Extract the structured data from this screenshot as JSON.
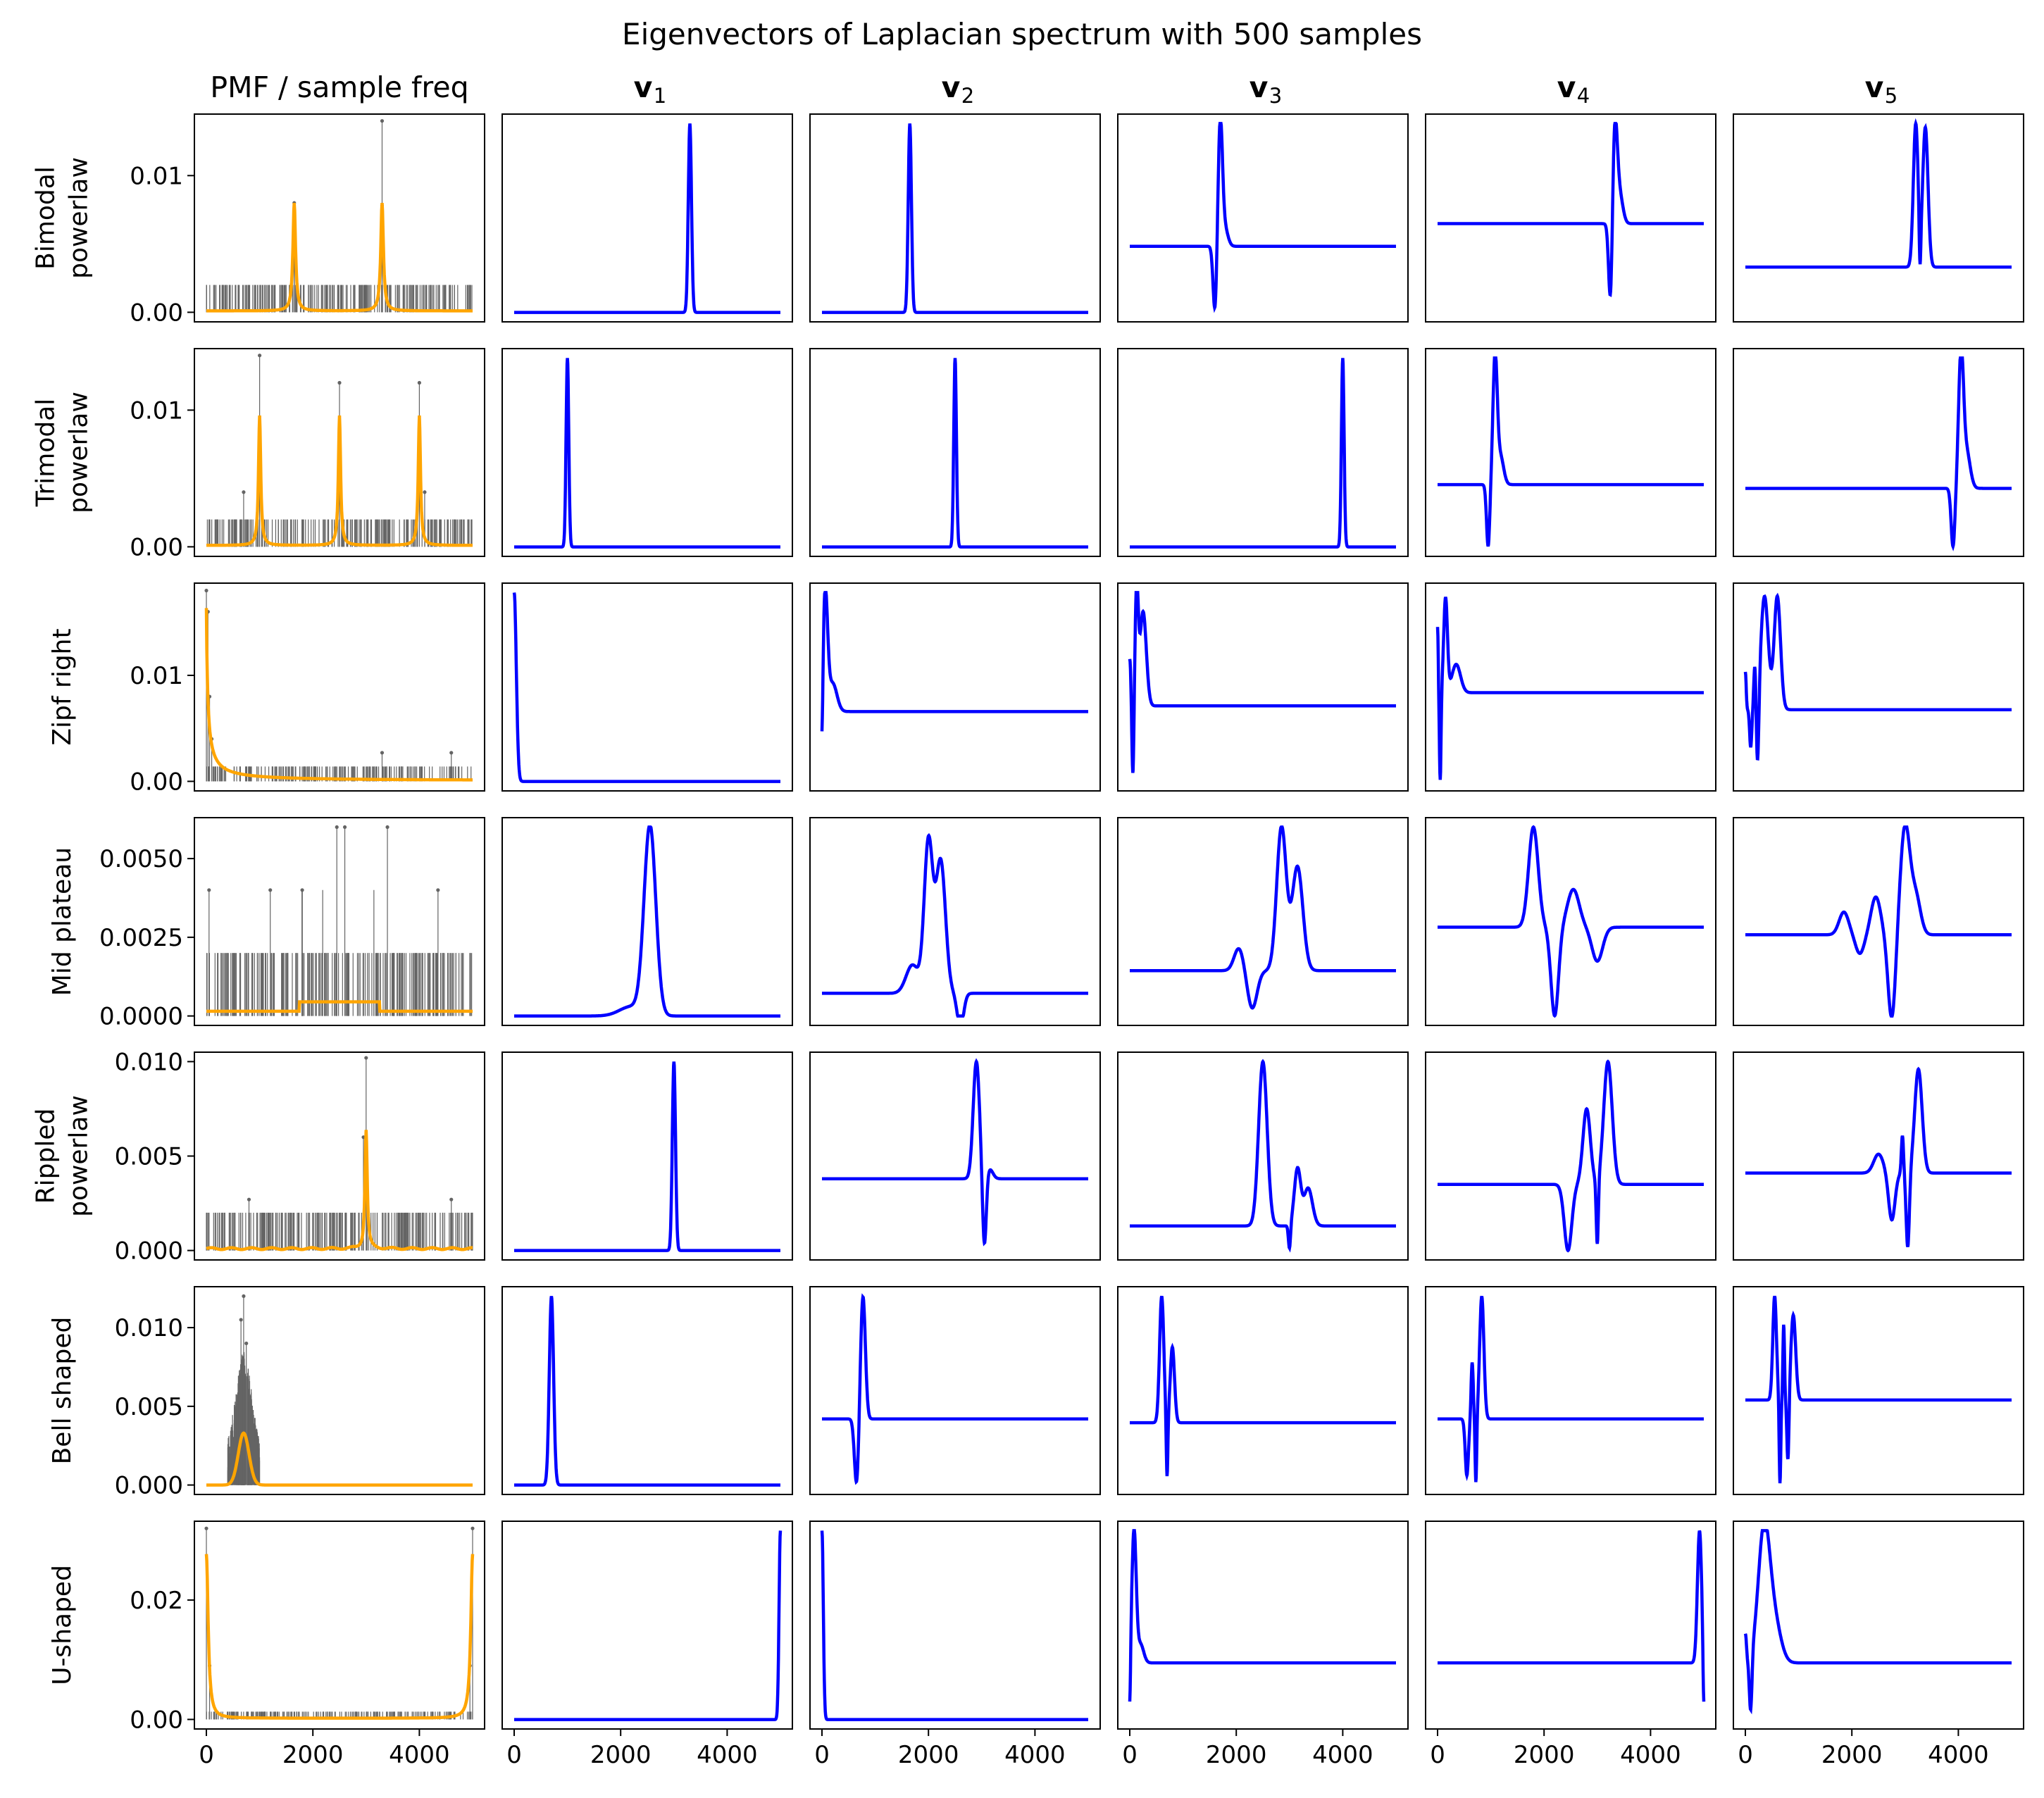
{
  "figure": {
    "title": "Eigenvectors of Laplacian spectrum with 500 samples",
    "column_titles": [
      "PMF / sample freq",
      "v",
      "v",
      "v",
      "v",
      "v"
    ],
    "column_subscripts": [
      "",
      "1",
      "2",
      "3",
      "4",
      "5"
    ],
    "row_labels": [
      [
        "Bimodal",
        "powerlaw"
      ],
      [
        "Trimodal",
        "powerlaw"
      ],
      [
        "Zipf right"
      ],
      [
        "Mid plateau"
      ],
      [
        "Rippled",
        "powerlaw"
      ],
      [
        "Bell shaped"
      ],
      [
        "U-shaped"
      ]
    ],
    "x_ticks": [
      "0",
      "2000",
      "4000"
    ],
    "colors": {
      "pmf": "#ffa500",
      "sample_freq": "#646464",
      "eigvec": "#0000ff",
      "axes": "#000000"
    }
  },
  "chart_data": {
    "type": "line",
    "x_range": [
      0,
      5000
    ],
    "pmf_yticks": [
      [
        "0.00",
        "0.01"
      ],
      [
        "0.00",
        "0.01"
      ],
      [
        "0.00",
        "0.01"
      ],
      [
        "0.0000",
        "0.0025",
        "0.0050"
      ],
      [
        "0.000",
        "0.005",
        "0.010"
      ],
      [
        "0.000",
        "0.005",
        "0.010"
      ],
      [
        "0.00",
        "0.02"
      ]
    ],
    "pmf_ytick_values": [
      [
        0,
        0.01
      ],
      [
        0,
        0.01
      ],
      [
        0,
        0.01
      ],
      [
        0,
        0.0025,
        0.005
      ],
      [
        0,
        0.005,
        0.01
      ],
      [
        0,
        0.005,
        0.01
      ],
      [
        0,
        0.02
      ]
    ],
    "pmf_ylim": [
      [
        -0.0007,
        0.0145
      ],
      [
        -0.0007,
        0.0145
      ],
      [
        -0.0009,
        0.0187
      ],
      [
        -0.0003,
        0.0063
      ],
      [
        -0.0005,
        0.0105
      ],
      [
        -0.0006,
        0.0126
      ],
      [
        -0.0016,
        0.0332
      ]
    ],
    "rows": [
      {
        "name": "Bimodal powerlaw",
        "pmf": {
          "kind": "bimodal",
          "centers": [
            1650,
            3300
          ],
          "peak": 0.0079,
          "width": 30
        },
        "samples": {
          "x0": 0,
          "x1": 5000,
          "base": 0.002,
          "spikes": [
            [
              1650,
              0.008
            ],
            [
              3300,
              0.014
            ],
            [
              3300,
              0.0078
            ],
            [
              1650,
              0.0065
            ]
          ]
        },
        "eigenvectors": [
          {
            "base": 0.0,
            "bumps": [
              [
                3300,
                1.0,
                30
              ]
            ]
          },
          {
            "base": 0.0,
            "bumps": [
              [
                1650,
                1.0,
                30
              ]
            ]
          },
          {
            "base": 0.35,
            "bumps": [
              [
                1600,
                -0.35,
                35
              ],
              [
                1700,
                0.65,
                40
              ],
              [
                1780,
                0.1,
                60
              ]
            ]
          },
          {
            "base": 0.47,
            "bumps": [
              [
                3250,
                -0.47,
                35
              ],
              [
                3330,
                0.53,
                45
              ],
              [
                3420,
                0.15,
                60
              ]
            ]
          },
          {
            "base": 0.24,
            "bumps": [
              [
                3200,
                0.76,
                45
              ],
              [
                3280,
                -0.24,
                15
              ],
              [
                3380,
                0.74,
                50
              ]
            ]
          }
        ]
      },
      {
        "name": "Trimodal powerlaw",
        "pmf": {
          "kind": "trimodal",
          "centers": [
            1000,
            2500,
            4000
          ],
          "peak": 0.0095,
          "width": 25
        },
        "samples": {
          "x0": 0,
          "x1": 5000,
          "base": 0.002,
          "spikes": [
            [
              1000,
              0.014
            ],
            [
              2500,
              0.012
            ],
            [
              4000,
              0.012
            ],
            [
              700,
              0.004
            ],
            [
              4100,
              0.004
            ]
          ]
        },
        "eigenvectors": [
          {
            "base": 0.0,
            "bumps": [
              [
                1000,
                1.0,
                25
              ]
            ]
          },
          {
            "base": 0.0,
            "bumps": [
              [
                2500,
                1.0,
                25
              ]
            ]
          },
          {
            "base": 0.0,
            "bumps": [
              [
                4000,
                1.0,
                25
              ]
            ]
          },
          {
            "base": 0.33,
            "bumps": [
              [
                950,
                -0.33,
                30
              ],
              [
                1080,
                0.67,
                40
              ],
              [
                1180,
                0.15,
                60
              ]
            ]
          },
          {
            "base": 0.31,
            "bumps": [
              [
                3900,
                -0.31,
                35
              ],
              [
                4050,
                0.69,
                45
              ],
              [
                4150,
                0.2,
                70
              ]
            ]
          }
        ]
      },
      {
        "name": "Zipf right",
        "pmf": {
          "kind": "zipf",
          "peak": 0.0163,
          "decay": 80
        },
        "samples": {
          "x0": 0,
          "x1": 5000,
          "base": 0.0014,
          "spikes": [
            [
              0,
              0.018
            ],
            [
              30,
              0.016
            ],
            [
              60,
              0.008
            ],
            [
              100,
              0.004
            ],
            [
              3300,
              0.0027
            ],
            [
              4600,
              0.0027
            ]
          ]
        },
        "eigenvectors": [
          {
            "base": 0.0,
            "bumps": [
              [
                0,
                1.0,
                40
              ]
            ]
          },
          {
            "base": 0.37,
            "bumps": [
              [
                0,
                -0.37,
                20
              ],
              [
                60,
                0.63,
                45
              ],
              [
                200,
                0.15,
                80
              ]
            ]
          },
          {
            "base": 0.4,
            "bumps": [
              [
                0,
                0.25,
                20
              ],
              [
                60,
                -0.4,
                18
              ],
              [
                130,
                0.6,
                30
              ],
              [
                250,
                0.5,
                60
              ]
            ]
          },
          {
            "base": 0.47,
            "bumps": [
              [
                0,
                0.35,
                12
              ],
              [
                50,
                -0.47,
                15
              ],
              [
                150,
                0.5,
                35
              ],
              [
                350,
                0.15,
                80
              ]
            ]
          },
          {
            "base": 0.38,
            "bumps": [
              [
                0,
                0.2,
                15
              ],
              [
                100,
                -0.2,
                20
              ],
              [
                180,
                0.25,
                20
              ],
              [
                230,
                -0.38,
                25
              ],
              [
                360,
                0.6,
                70
              ],
              [
                600,
                0.6,
                60
              ]
            ]
          }
        ]
      },
      {
        "name": "Mid plateau",
        "pmf": {
          "kind": "plateau",
          "from": 1750,
          "to": 3250,
          "level": 0.00045,
          "base": 0.00015
        },
        "samples": {
          "x0": 0,
          "x1": 5000,
          "base": 0.002,
          "spikes": [
            [
              1800,
              0.004
            ],
            [
              2450,
              0.006
            ],
            [
              2600,
              0.006
            ],
            [
              3400,
              0.006
            ],
            [
              1200,
              0.004
            ],
            [
              4350,
              0.004
            ],
            [
              50,
              0.004
            ]
          ]
        },
        "eigenvectors": [
          {
            "base": 0.0,
            "bumps": [
              [
                2550,
                1.0,
                110
              ],
              [
                2200,
                0.05,
                220
              ]
            ]
          },
          {
            "base": 0.12,
            "bumps": [
              [
                2000,
                0.8,
                80
              ],
              [
                2230,
                0.7,
                90
              ],
              [
                2600,
                -0.18,
                60
              ],
              [
                1700,
                0.15,
                120
              ]
            ]
          },
          {
            "base": 0.24,
            "bumps": [
              [
                2050,
                0.12,
                90
              ],
              [
                2300,
                -0.2,
                90
              ],
              [
                2850,
                0.76,
                90
              ],
              [
                3150,
                0.55,
                100
              ]
            ]
          },
          {
            "base": 0.47,
            "bumps": [
              [
                1800,
                0.53,
                90
              ],
              [
                2200,
                -0.47,
                70
              ],
              [
                2550,
                0.2,
                110
              ],
              [
                3000,
                -0.18,
                100
              ]
            ]
          },
          {
            "base": 0.43,
            "bumps": [
              [
                1850,
                0.12,
                90
              ],
              [
                2150,
                -0.1,
                80
              ],
              [
                2450,
                0.2,
                90
              ],
              [
                2750,
                -0.45,
                70
              ],
              [
                3000,
                0.57,
                90
              ],
              [
                3200,
                0.2,
                90
              ]
            ]
          }
        ]
      },
      {
        "name": "Rippled powerlaw",
        "pmf": {
          "kind": "rippled",
          "center": 3000,
          "peak": 0.0063,
          "width": 25
        },
        "samples": {
          "x0": 0,
          "x1": 5000,
          "base": 0.002,
          "spikes": [
            [
              3000,
              0.0102
            ],
            [
              2950,
              0.006
            ],
            [
              800,
              0.0027
            ],
            [
              4600,
              0.0027
            ]
          ]
        },
        "eigenvectors": [
          {
            "base": 0.0,
            "bumps": [
              [
                3000,
                1.0,
                30
              ]
            ]
          },
          {
            "base": 0.38,
            "bumps": [
              [
                2900,
                0.62,
                60
              ],
              [
                3050,
                -0.38,
                35
              ],
              [
                3150,
                0.05,
                60
              ]
            ]
          },
          {
            "base": 0.13,
            "bumps": [
              [
                2500,
                0.87,
                80
              ],
              [
                3000,
                -0.13,
                20
              ],
              [
                3150,
                0.3,
                60
              ],
              [
                3350,
                0.2,
                80
              ]
            ]
          },
          {
            "base": 0.35,
            "bumps": [
              [
                2450,
                -0.35,
                70
              ],
              [
                2800,
                0.4,
                70
              ],
              [
                3000,
                -0.35,
                20
              ],
              [
                3200,
                0.65,
                80
              ]
            ]
          },
          {
            "base": 0.41,
            "bumps": [
              [
                2500,
                0.1,
                90
              ],
              [
                2750,
                -0.25,
                60
              ],
              [
                2950,
                0.2,
                20
              ],
              [
                3050,
                -0.4,
                30
              ],
              [
                3250,
                0.55,
                70
              ]
            ]
          }
        ]
      },
      {
        "name": "Bell shaped",
        "pmf": {
          "kind": "bell",
          "center": 700,
          "peak": 0.0033,
          "width": 100
        },
        "samples": {
          "x0": 0,
          "x1": 5000,
          "base": 0.0,
          "bell": [
            700,
            0.0065,
            150
          ],
          "spikes": [
            [
              700,
              0.012
            ],
            [
              650,
              0.0105
            ],
            [
              750,
              0.009
            ]
          ]
        },
        "eigenvectors": [
          {
            "base": 0.0,
            "bumps": [
              [
                700,
                1.0,
                40
              ]
            ]
          },
          {
            "base": 0.35,
            "bumps": [
              [
                650,
                -0.35,
                40
              ],
              [
                770,
                0.65,
                45
              ]
            ]
          },
          {
            "base": 0.33,
            "bumps": [
              [
                600,
                0.67,
                40
              ],
              [
                700,
                -0.33,
                15
              ],
              [
                800,
                0.4,
                40
              ]
            ]
          },
          {
            "base": 0.35,
            "bumps": [
              [
                550,
                -0.3,
                30
              ],
              [
                650,
                0.3,
                20
              ],
              [
                720,
                -0.35,
                15
              ],
              [
                830,
                0.65,
                40
              ]
            ]
          },
          {
            "base": 0.45,
            "bumps": [
              [
                550,
                0.55,
                35
              ],
              [
                650,
                -0.45,
                15
              ],
              [
                720,
                0.4,
                15
              ],
              [
                800,
                -0.35,
                20
              ],
              [
                900,
                0.45,
                45
              ]
            ]
          }
        ]
      },
      {
        "name": "U-shaped",
        "pmf": {
          "kind": "ushape",
          "peak": 0.0275,
          "width": 40
        },
        "samples": {
          "x0": 0,
          "x1": 5000,
          "base": 0.0013,
          "spikes": [
            [
              0,
              0.032
            ],
            [
              5000,
              0.032
            ],
            [
              60,
              0.009
            ],
            [
              4950,
              0.009
            ]
          ]
        },
        "eigenvectors": [
          {
            "base": 0.0,
            "bumps": [
              [
                5000,
                1.0,
                25
              ]
            ]
          },
          {
            "base": 0.0,
            "bumps": [
              [
                0,
                1.0,
                25
              ]
            ]
          },
          {
            "base": 0.3,
            "bumps": [
              [
                0,
                -0.3,
                15
              ],
              [
                80,
                0.7,
                40
              ],
              [
                200,
                0.1,
                60
              ]
            ]
          },
          {
            "base": 0.3,
            "bumps": [
              [
                4920,
                0.7,
                40
              ],
              [
                5000,
                -0.3,
                15
              ]
            ]
          },
          {
            "base": 0.3,
            "bumps": [
              [
                0,
                0.15,
                20
              ],
              [
                100,
                -0.3,
                25
              ],
              [
                350,
                0.7,
                110
              ],
              [
                550,
                0.2,
                120
              ]
            ]
          }
        ]
      }
    ]
  }
}
